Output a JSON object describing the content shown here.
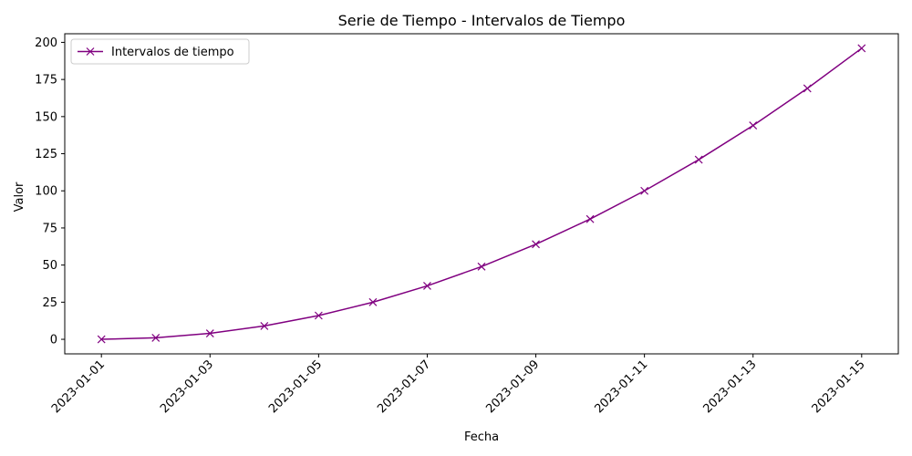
{
  "chart_data": {
    "type": "line",
    "title": "Serie de Tiempo - Intervalos de Tiempo",
    "xlabel": "Fecha",
    "ylabel": "Valor",
    "x": [
      "2023-01-01",
      "2023-01-02",
      "2023-01-03",
      "2023-01-04",
      "2023-01-05",
      "2023-01-06",
      "2023-01-07",
      "2023-01-08",
      "2023-01-09",
      "2023-01-10",
      "2023-01-11",
      "2023-01-12",
      "2023-01-13",
      "2023-01-14",
      "2023-01-15"
    ],
    "series": [
      {
        "name": "Intervalos de tiempo",
        "values": [
          0,
          1,
          4,
          9,
          16,
          25,
          36,
          49,
          64,
          81,
          100,
          121,
          144,
          169,
          196
        ],
        "color": "#800080",
        "marker": "x"
      }
    ],
    "xticks": [
      "2023-01-01",
      "2023-01-03",
      "2023-01-05",
      "2023-01-07",
      "2023-01-09",
      "2023-01-11",
      "2023-01-13",
      "2023-01-15"
    ],
    "yticks": [
      0,
      25,
      50,
      75,
      100,
      125,
      150,
      175,
      200
    ],
    "ylim": [
      -9.8,
      205.8
    ],
    "xlim": [
      "2022-12-31T07:48",
      "2023-01-15T16:12"
    ],
    "grid": false,
    "legend_position": "top-left"
  }
}
